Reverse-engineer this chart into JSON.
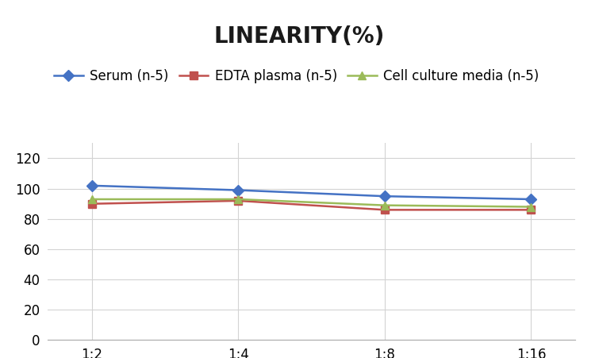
{
  "title": "LINEARITY(%)",
  "x_labels": [
    "1:2",
    "1:4",
    "1:8",
    "1:16"
  ],
  "x_positions": [
    0,
    1,
    2,
    3
  ],
  "series": [
    {
      "name": "Serum (n‑5)",
      "values": [
        102,
        99,
        95,
        93
      ],
      "color": "#4472C4",
      "marker": "D",
      "linewidth": 1.8
    },
    {
      "name": "EDTA plasma (n‑5)",
      "values": [
        90,
        92,
        86,
        86
      ],
      "color": "#C0504D",
      "marker": "s",
      "linewidth": 1.8
    },
    {
      "name": "Cell culture media (n‑5)",
      "values": [
        93,
        93,
        89,
        88
      ],
      "color": "#9BBB59",
      "marker": "^",
      "linewidth": 1.8
    }
  ],
  "ylim": [
    0,
    130
  ],
  "yticks": [
    0,
    20,
    40,
    60,
    80,
    100,
    120
  ],
  "title_fontsize": 20,
  "legend_fontsize": 12,
  "tick_fontsize": 12,
  "background_color": "#ffffff",
  "grid_color": "#d3d3d3",
  "title_fontweight": "bold"
}
